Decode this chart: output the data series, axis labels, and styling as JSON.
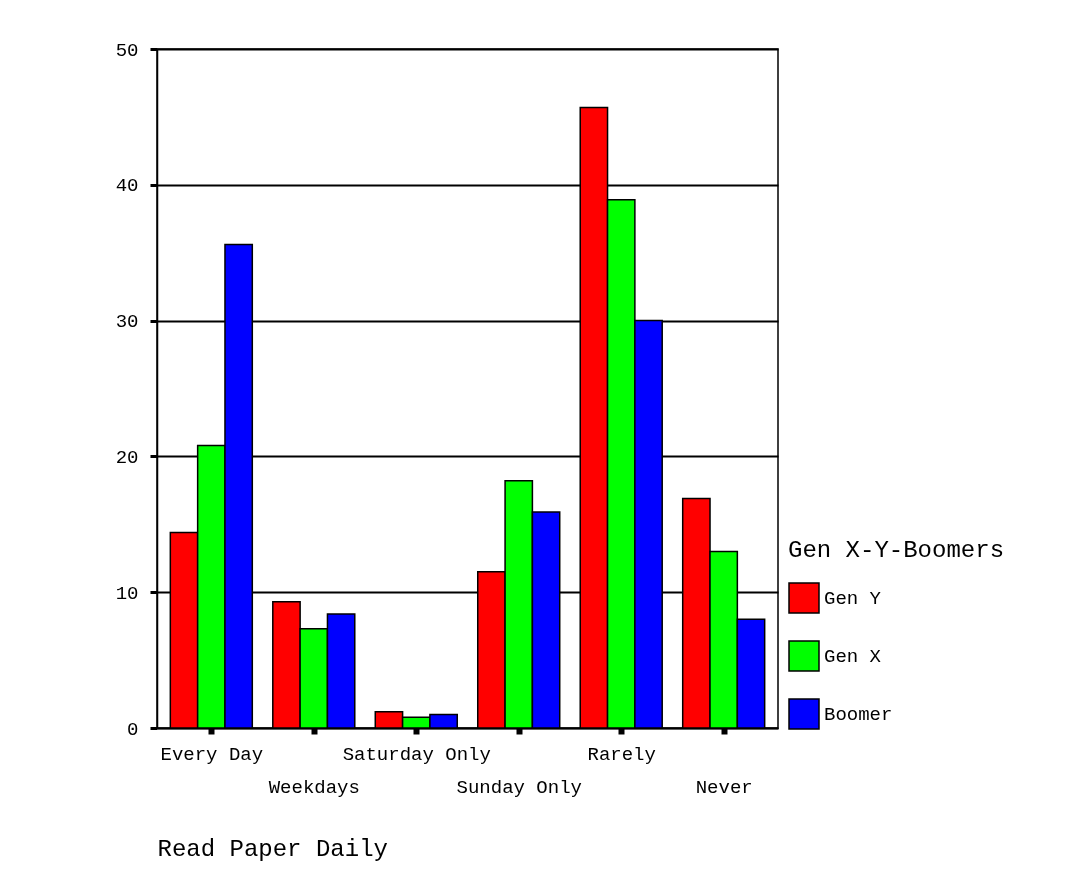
{
  "chart_data": {
    "type": "bar",
    "xlabel": "Read Paper Daily",
    "legend_title": "Gen X-Y-Boomers",
    "categories": [
      "Every Day",
      "Weekdays",
      "Saturday Only",
      "Sunday Only",
      "Rarely",
      "Never"
    ],
    "series": [
      {
        "name": "Gen Y",
        "color": "#ff0000",
        "values": [
          14.4,
          9.3,
          1.2,
          11.5,
          45.7,
          16.9
        ]
      },
      {
        "name": "Gen X",
        "color": "#00ff00",
        "values": [
          20.8,
          7.3,
          0.8,
          18.2,
          38.9,
          13.0
        ]
      },
      {
        "name": "Boomer",
        "color": "#0000ff",
        "values": [
          35.6,
          8.4,
          1.0,
          15.9,
          30.0,
          8.0
        ]
      }
    ],
    "ylim": [
      0,
      50
    ],
    "yticks": [
      0,
      10,
      20,
      30,
      40,
      50
    ],
    "grid": "y",
    "legend": "right"
  }
}
